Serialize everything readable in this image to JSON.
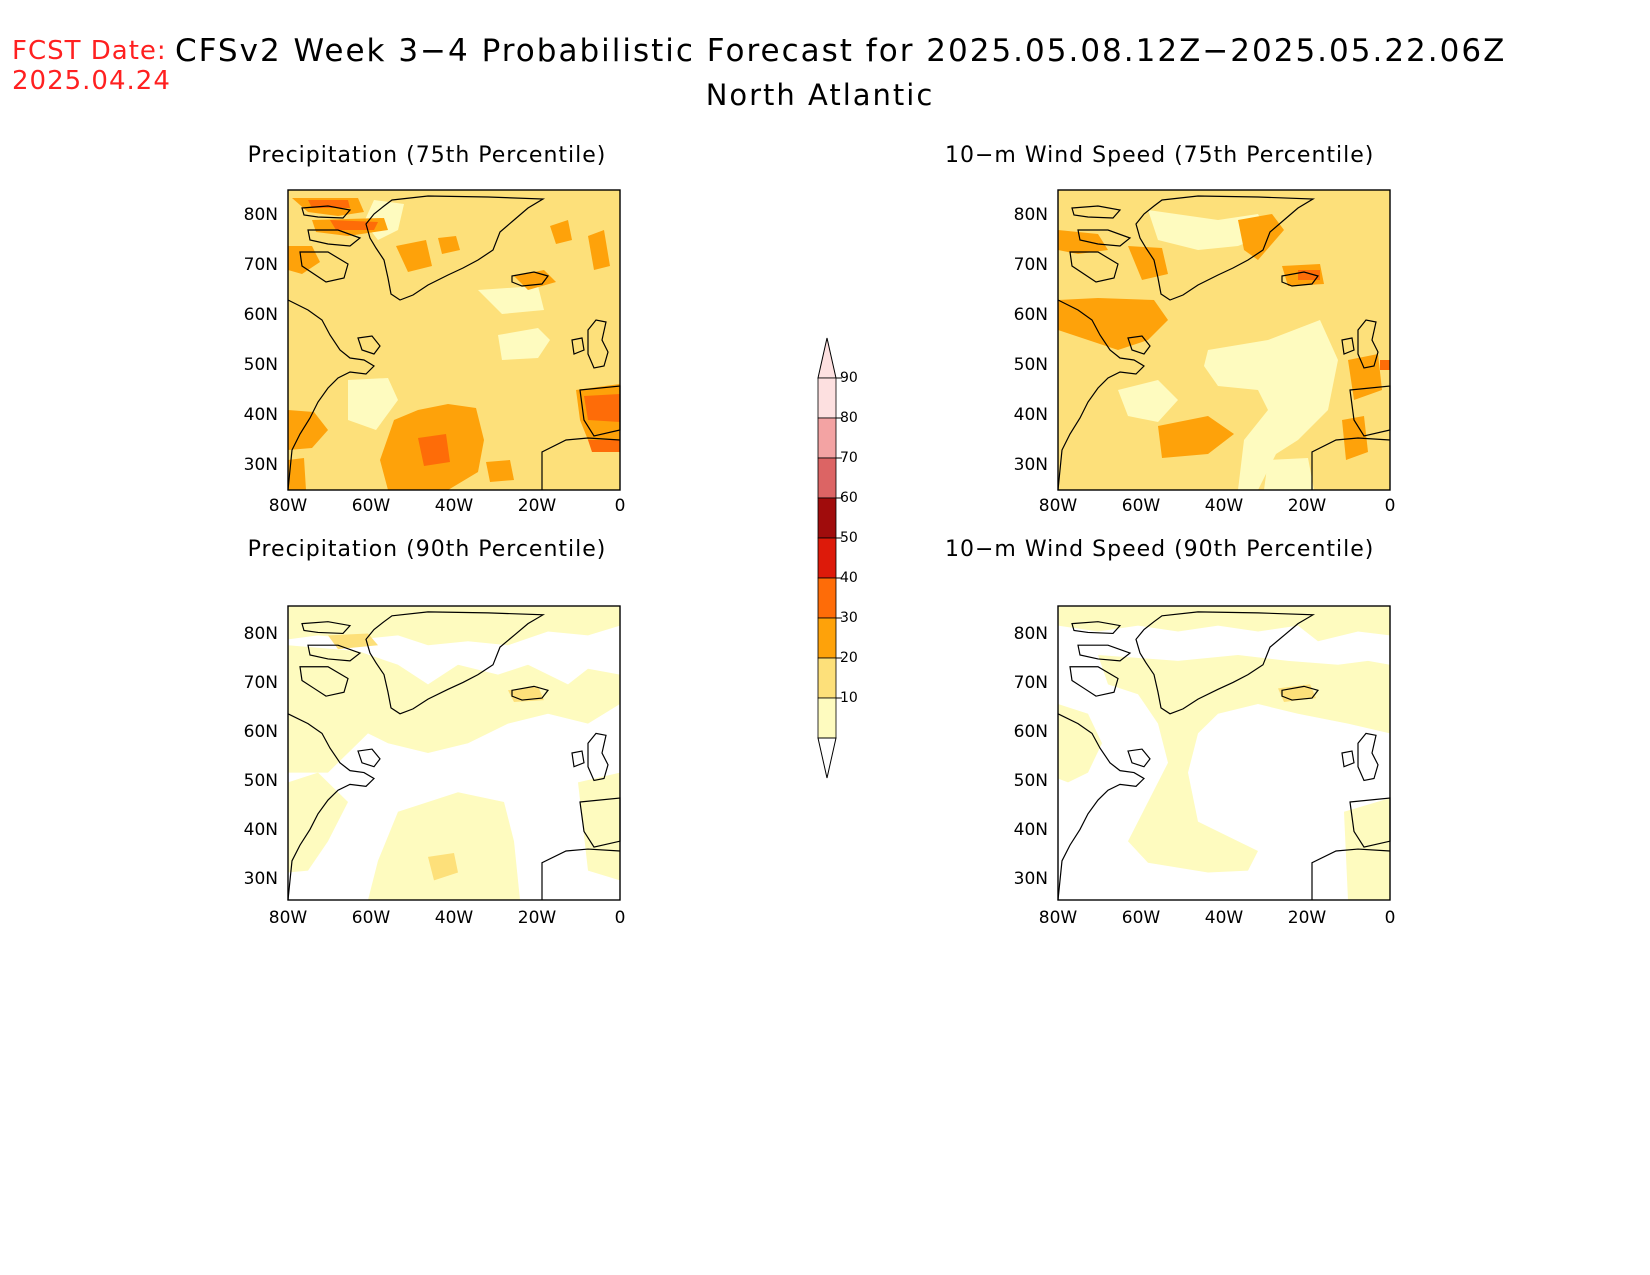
{
  "header": {
    "fcst_line1": "FCST Date:",
    "fcst_line2": "2025.04.24",
    "title": "CFSv2 Week 3−4 Probabilistic Forecast for 2025.05.08.12Z−2025.05.22.06Z",
    "subtitle": "North Atlantic"
  },
  "panels": [
    {
      "title": "Precipitation (75th Percentile)"
    },
    {
      "title": "10−m Wind Speed (75th Percentile)"
    },
    {
      "title": "Precipitation (90th Percentile)"
    },
    {
      "title": "10−m Wind Speed (90th Percentile)"
    }
  ],
  "axes": {
    "lat_labels": [
      "80N",
      "70N",
      "60N",
      "50N",
      "40N",
      "30N"
    ],
    "lon_labels": [
      "80W",
      "60W",
      "40W",
      "20W",
      "0"
    ]
  },
  "colorbar": {
    "labels": [
      "90",
      "80",
      "70",
      "60",
      "50",
      "40",
      "30",
      "20",
      "10"
    ],
    "colors": [
      "#fde0e0",
      "#f3a3a3",
      "#dc6464",
      "#a00c0c",
      "#dd1a0a",
      "#fe6c08",
      "#fea20a",
      "#fde07a",
      "#fefbbf"
    ]
  },
  "palette": {
    "level_10": "#fefbbf",
    "level_20": "#fde07a",
    "level_30": "#fea20a",
    "level_40": "#fe6c08",
    "fcst_text": "#ff2020"
  }
}
